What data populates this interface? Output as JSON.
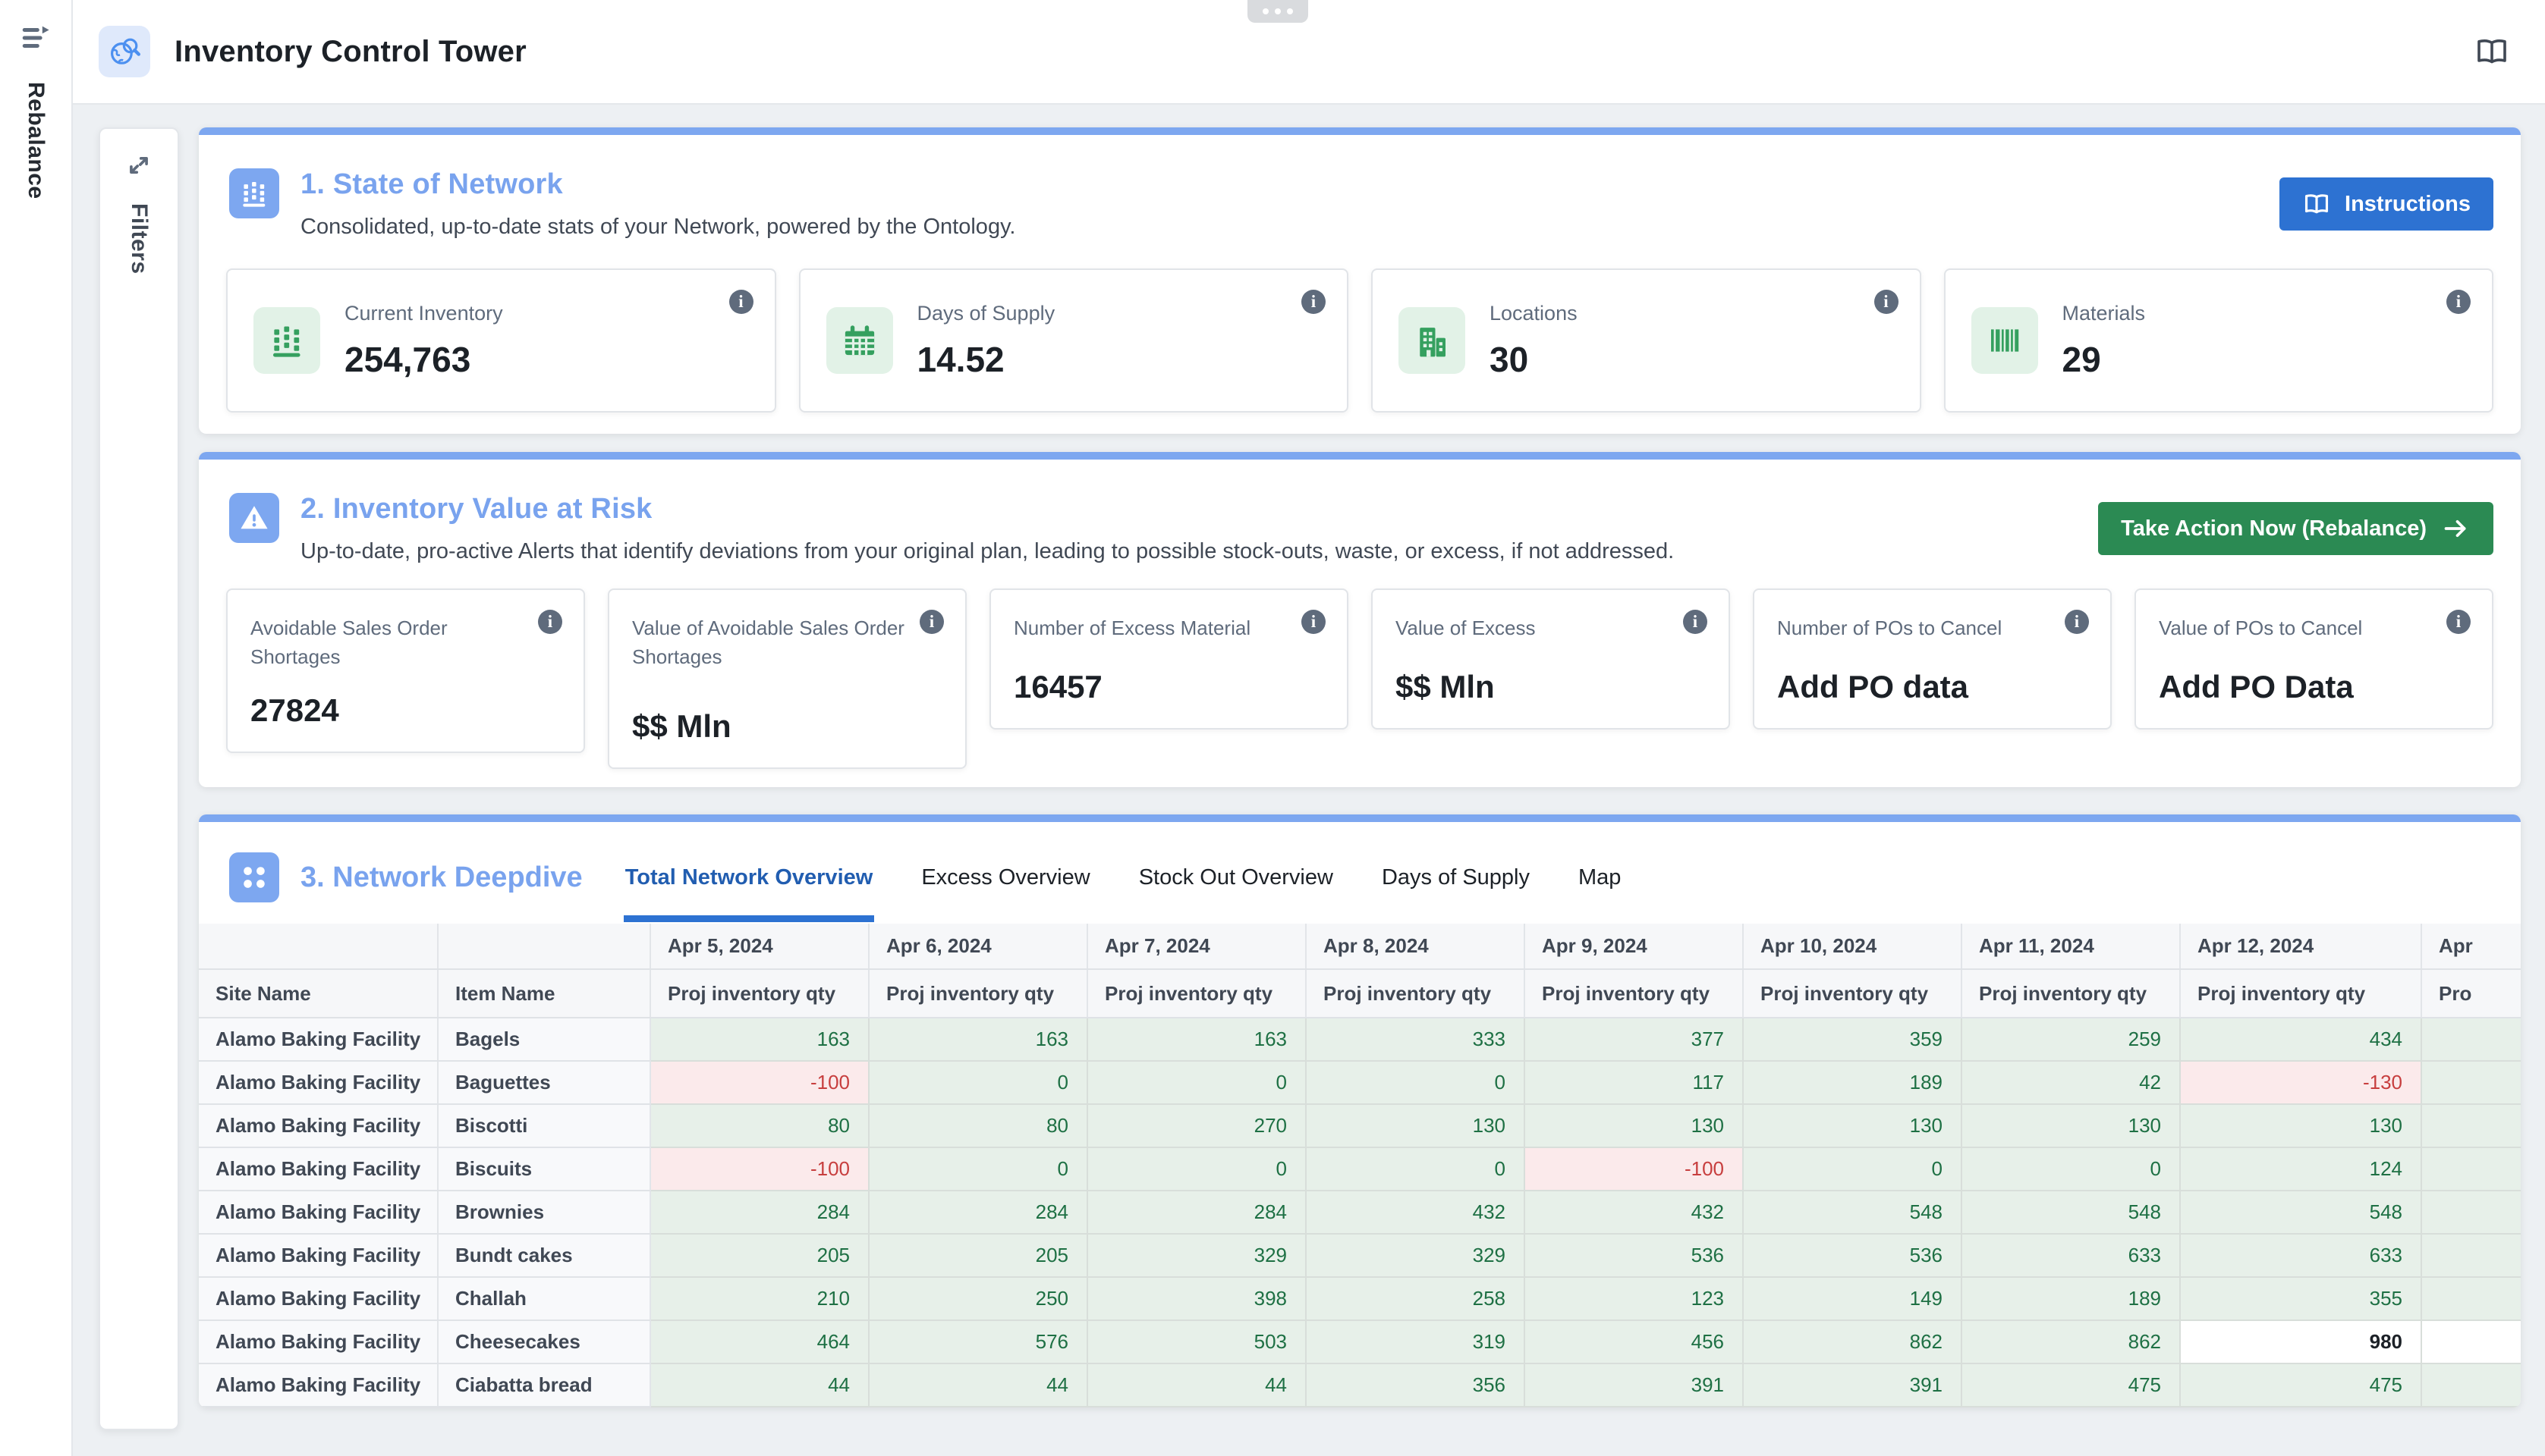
{
  "app": {
    "title": "Inventory Control Tower",
    "left_rail_label": "Rebalance",
    "filters_label": "Filters"
  },
  "colors": {
    "section_accent_blue": "#7DA7F0",
    "primary_button_blue": "#2D72D2",
    "action_button_green": "#2B8A53",
    "kpi_icon_green": "#35A05F",
    "positive_cell_bg": "#E7F0E9",
    "positive_cell_text": "#1E7044",
    "negative_cell_bg": "#FBEAEB",
    "negative_cell_text": "#C73E3E",
    "active_tab_blue": "#215DB0"
  },
  "section1": {
    "title": "1. State of Network",
    "subtitle": "Consolidated, up-to-date stats of your Network, powered by the Ontology.",
    "instructions_button": "Instructions",
    "cards": [
      {
        "label": "Current Inventory",
        "value": "254,763",
        "icon": "inventory-icon"
      },
      {
        "label": "Days of Supply",
        "value": "14.52",
        "icon": "calendar-icon"
      },
      {
        "label": "Locations",
        "value": "30",
        "icon": "building-icon"
      },
      {
        "label": "Materials",
        "value": "29",
        "icon": "barcode-icon"
      }
    ]
  },
  "section2": {
    "title": "2. Inventory Value at Risk",
    "subtitle": "Up-to-date, pro-active Alerts that identify deviations from your original plan, leading to possible stock-outs, waste, or excess, if not addressed.",
    "action_button": "Take Action Now (Rebalance)",
    "cards": [
      {
        "label": "Avoidable Sales Order Shortages",
        "value": "27824",
        "tall": false
      },
      {
        "label": "Value of Avoidable Sales Order Shortages",
        "value": "$$ Mln",
        "tall": true
      },
      {
        "label": "Number of Excess Material",
        "value": "16457",
        "tall": false
      },
      {
        "label": "Value of Excess",
        "value": "$$ Mln",
        "tall": false
      },
      {
        "label": "Number of POs to Cancel",
        "value": "Add PO data",
        "tall": false
      },
      {
        "label": "Value of POs to Cancel",
        "value": "Add PO Data",
        "tall": false
      }
    ]
  },
  "section3": {
    "title": "3. Network Deepdive",
    "tabs": [
      {
        "label": "Total Network Overview",
        "active": true
      },
      {
        "label": "Excess Overview",
        "active": false
      },
      {
        "label": "Stock Out Overview",
        "active": false
      },
      {
        "label": "Days of Supply",
        "active": false
      },
      {
        "label": "Map",
        "active": false
      }
    ],
    "table": {
      "site_col_header": "Site Name",
      "item_col_header": "Item Name",
      "measure_header": "Proj inventory qty",
      "dates": [
        "Apr 5, 2024",
        "Apr 6, 2024",
        "Apr 7, 2024",
        "Apr 8, 2024",
        "Apr 9, 2024",
        "Apr 10, 2024",
        "Apr 11, 2024",
        "Apr 12, 2024"
      ],
      "clipped_last_column": {
        "date": "Apr",
        "measure": "Pro"
      },
      "rows": [
        {
          "site": "Alamo Baking Facility",
          "item": "Bagels",
          "values": [
            163,
            163,
            163,
            333,
            377,
            359,
            259,
            434
          ]
        },
        {
          "site": "Alamo Baking Facility",
          "item": "Baguettes",
          "values": [
            -100,
            0,
            0,
            0,
            117,
            189,
            42,
            -130
          ]
        },
        {
          "site": "Alamo Baking Facility",
          "item": "Biscotti",
          "values": [
            80,
            80,
            270,
            130,
            130,
            130,
            130,
            130
          ]
        },
        {
          "site": "Alamo Baking Facility",
          "item": "Biscuits",
          "values": [
            -100,
            0,
            0,
            0,
            -100,
            0,
            0,
            124
          ]
        },
        {
          "site": "Alamo Baking Facility",
          "item": "Brownies",
          "values": [
            284,
            284,
            284,
            432,
            432,
            548,
            548,
            548
          ]
        },
        {
          "site": "Alamo Baking Facility",
          "item": "Bundt cakes",
          "values": [
            205,
            205,
            329,
            329,
            536,
            536,
            633,
            633
          ]
        },
        {
          "site": "Alamo Baking Facility",
          "item": "Challah",
          "values": [
            210,
            250,
            398,
            258,
            123,
            149,
            189,
            355
          ]
        },
        {
          "site": "Alamo Baking Facility",
          "item": "Cheesecakes",
          "values": [
            464,
            576,
            503,
            319,
            456,
            862,
            862,
            980
          ],
          "plain_value_index": 7
        },
        {
          "site": "Alamo Baking Facility",
          "item": "Ciabatta bread",
          "values": [
            44,
            44,
            44,
            356,
            391,
            391,
            475,
            475
          ]
        }
      ]
    }
  }
}
